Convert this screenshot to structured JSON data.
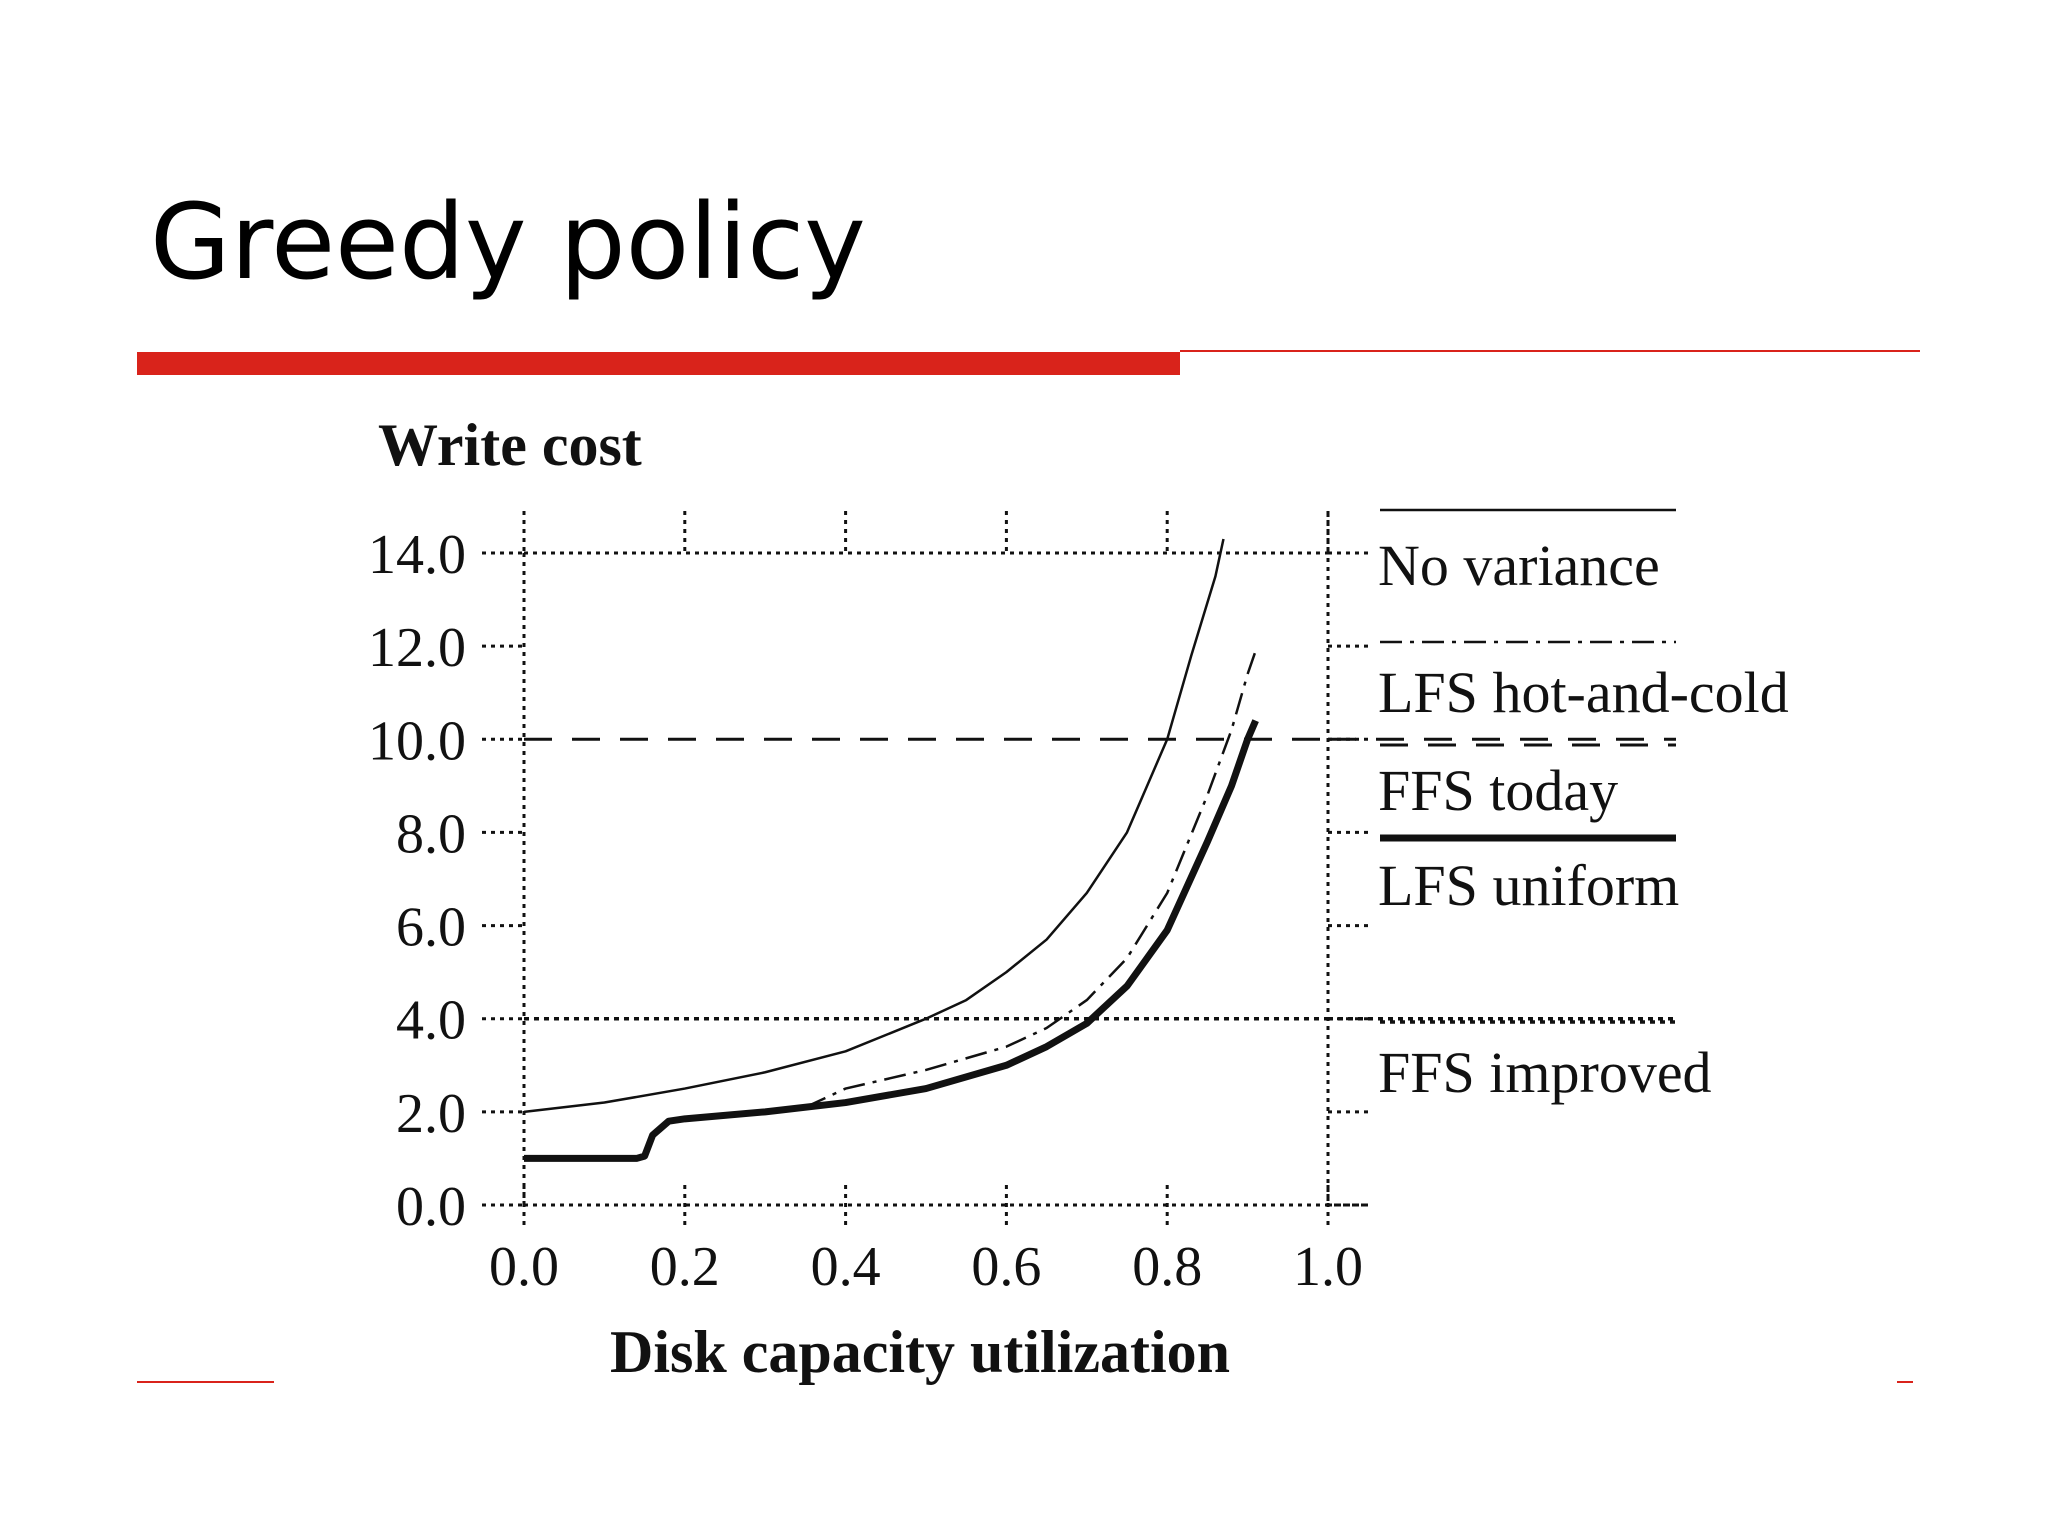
{
  "slide": {
    "title": "Greedy policy",
    "accent_color": "#d9231b"
  },
  "chart_data": {
    "type": "line",
    "title": "",
    "ylabel": "Write cost",
    "xlabel": "Disk capacity utilization",
    "xlim": [
      0.0,
      1.0
    ],
    "ylim": [
      0.0,
      14.0
    ],
    "x_ticks": [
      "0.0",
      "0.2",
      "0.4",
      "0.6",
      "0.8",
      "1.0"
    ],
    "y_ticks": [
      "0.0",
      "2.0",
      "4.0",
      "6.0",
      "8.0",
      "10.0",
      "12.0",
      "14.0"
    ],
    "grid": false,
    "legend_position": "right",
    "series": [
      {
        "name": "No variance",
        "style": "solid-thin",
        "x": [
          0.0,
          0.1,
          0.2,
          0.3,
          0.4,
          0.5,
          0.55,
          0.6,
          0.65,
          0.7,
          0.75,
          0.8,
          0.83,
          0.86,
          0.87
        ],
        "y": [
          2.0,
          2.2,
          2.5,
          2.85,
          3.3,
          4.0,
          4.4,
          5.0,
          5.7,
          6.7,
          8.0,
          10.0,
          11.8,
          13.5,
          14.3
        ]
      },
      {
        "name": "LFS hot-and-cold",
        "style": "dash-dot",
        "x": [
          0.35,
          0.4,
          0.5,
          0.6,
          0.65,
          0.7,
          0.75,
          0.8,
          0.85,
          0.88,
          0.9,
          0.91
        ],
        "y": [
          2.1,
          2.5,
          2.9,
          3.4,
          3.8,
          4.4,
          5.3,
          6.7,
          8.8,
          10.2,
          11.4,
          11.9
        ]
      },
      {
        "name": "FFS today",
        "style": "dashed-horizontal",
        "x": [
          0.0,
          1.0
        ],
        "y": [
          10.0,
          10.0
        ]
      },
      {
        "name": "LFS uniform",
        "style": "solid-thick",
        "x": [
          0.0,
          0.14,
          0.15,
          0.16,
          0.18,
          0.2,
          0.3,
          0.4,
          0.5,
          0.6,
          0.65,
          0.7,
          0.75,
          0.8,
          0.85,
          0.88,
          0.9,
          0.91
        ],
        "y": [
          1.0,
          1.0,
          1.05,
          1.5,
          1.8,
          1.85,
          2.0,
          2.2,
          2.5,
          3.0,
          3.4,
          3.9,
          4.7,
          5.9,
          7.8,
          9.0,
          10.0,
          10.4
        ]
      },
      {
        "name": "FFS improved",
        "style": "dotted-horizontal",
        "x": [
          0.0,
          1.0
        ],
        "y": [
          4.0,
          4.0
        ]
      }
    ]
  }
}
